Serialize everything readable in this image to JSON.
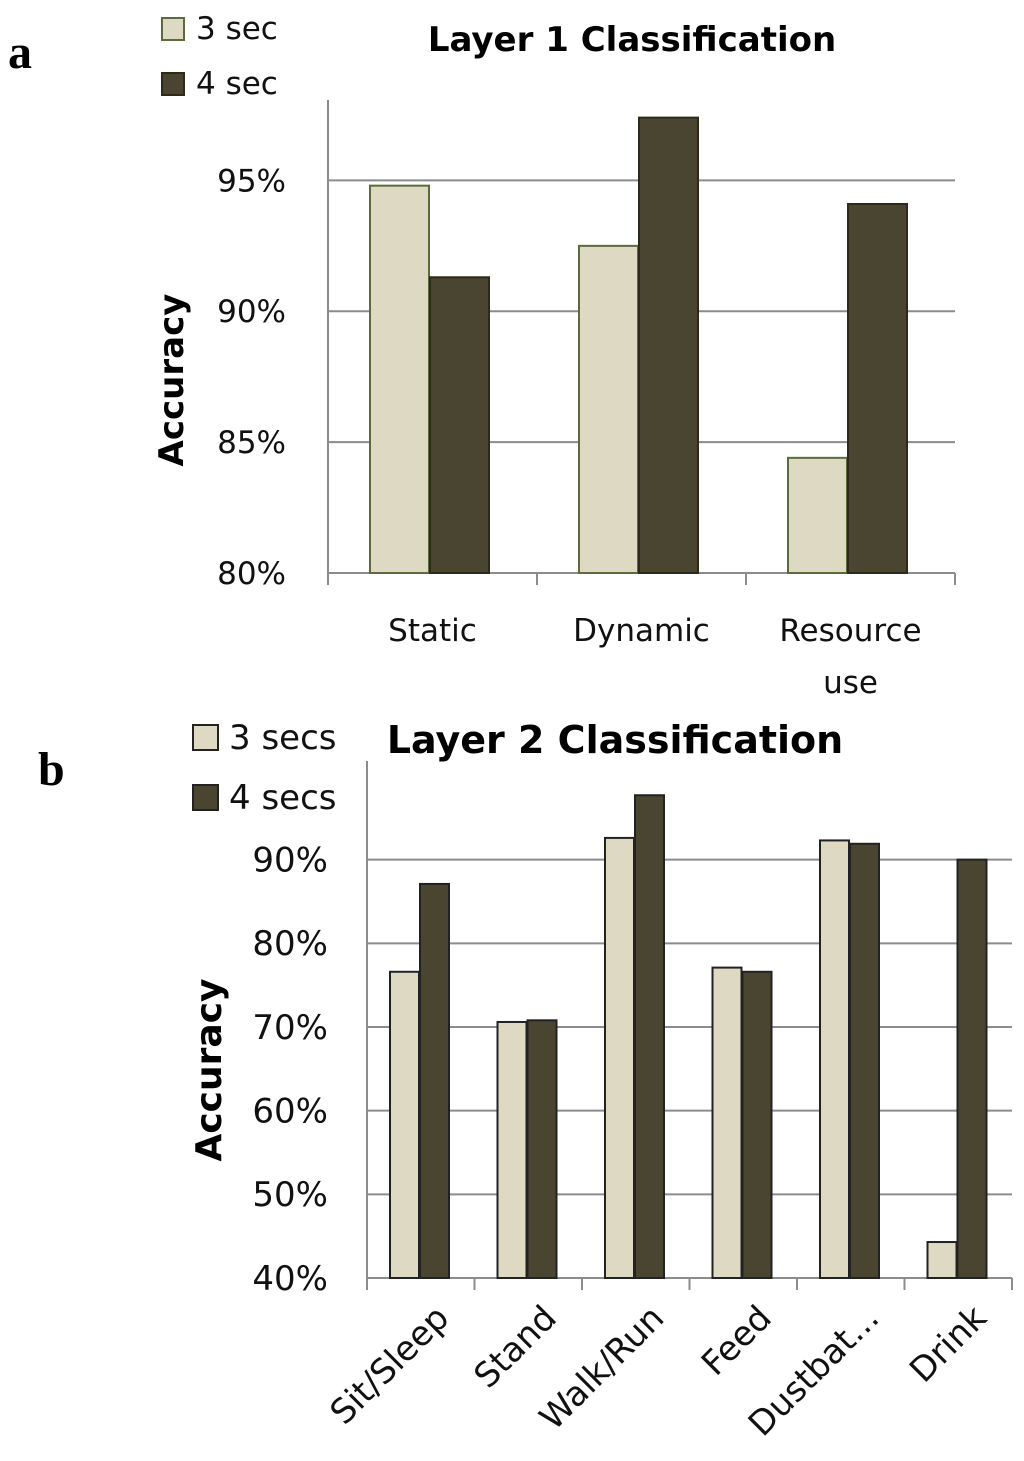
{
  "chart_data": [
    {
      "panel": "a",
      "type": "bar",
      "title": "Layer 1 Classification",
      "xlabel": "",
      "ylabel": "Accuracy",
      "categories": [
        "Static",
        "Dynamic",
        "Resource use"
      ],
      "series": [
        {
          "name": "3 sec",
          "color": "#ddd9c3",
          "values": [
            94.8,
            92.5,
            84.4
          ]
        },
        {
          "name": "4 sec",
          "color": "#4a4530",
          "values": [
            91.3,
            97.4,
            94.1
          ]
        }
      ],
      "ylim": [
        80,
        97.5
      ],
      "yticks": [
        80,
        85,
        90,
        95
      ],
      "ytick_labels": [
        "80%",
        "85%",
        "90%",
        "95%"
      ],
      "grid": true,
      "legend_position": "top-left"
    },
    {
      "panel": "b",
      "type": "bar",
      "title": "Layer 2 Classification",
      "xlabel": "",
      "ylabel": "Accuracy",
      "categories": [
        "Sit/Sleep",
        "Stand",
        "Walk/Run",
        "Feed",
        "Dustbat...",
        "Drink"
      ],
      "series": [
        {
          "name": "3 secs",
          "color": "#ddd9c3",
          "values": [
            76.6,
            70.6,
            92.6,
            77.1,
            92.3,
            44.3
          ]
        },
        {
          "name": "4 secs",
          "color": "#4a4530",
          "values": [
            87.1,
            70.8,
            97.7,
            76.6,
            91.9,
            90.0
          ]
        }
      ],
      "ylim": [
        40,
        100
      ],
      "yticks": [
        40,
        50,
        60,
        70,
        80,
        90
      ],
      "ytick_labels": [
        "40%",
        "50%",
        "60%",
        "70%",
        "80%",
        "90%"
      ],
      "grid": true,
      "legend_position": "top-left"
    }
  ]
}
